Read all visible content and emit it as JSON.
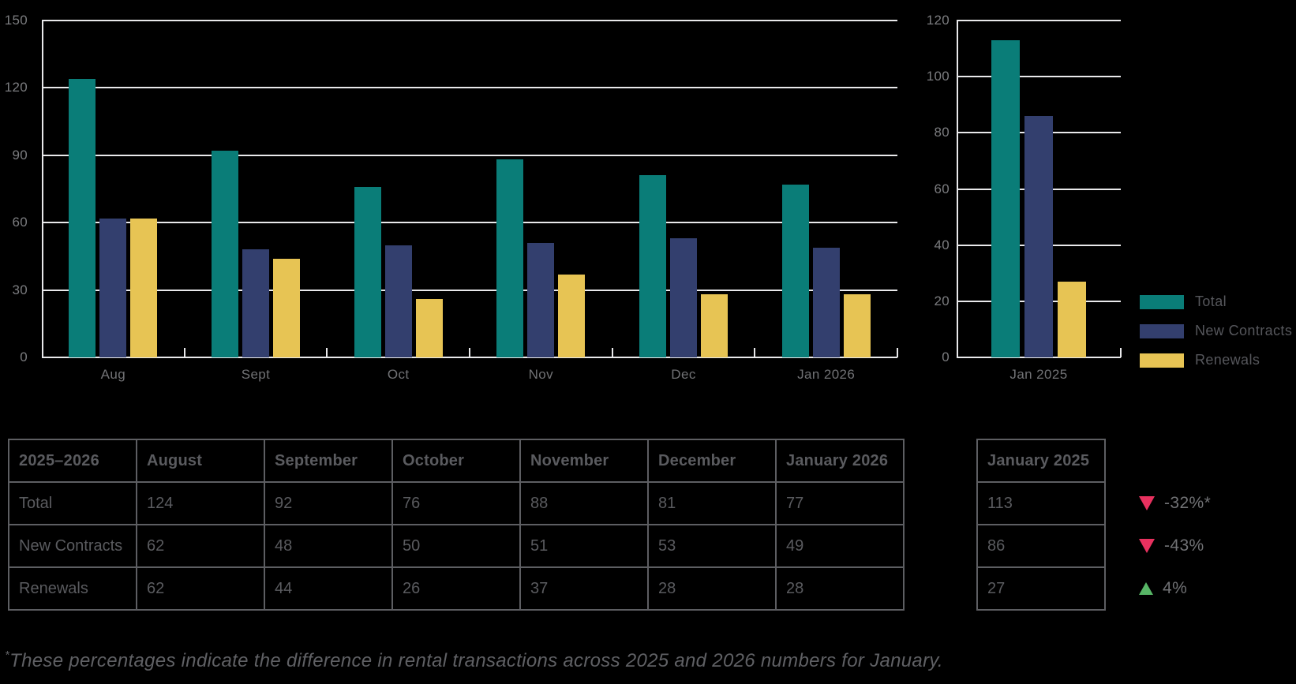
{
  "colors": {
    "teal": "#0a7d78",
    "navy": "#333f6e",
    "yellow": "#e7c454",
    "pink": "#e8315f",
    "green": "#57b566",
    "grid": "#e9e9eb",
    "tick_text": "#7b7c7f",
    "table_text": "#5a5b5f",
    "border": "#5d5e62",
    "background": "#000000"
  },
  "chart_data": [
    {
      "type": "bar",
      "title": "",
      "categories": [
        "Aug",
        "Sept",
        "Oct",
        "Nov",
        "Dec",
        "Jan 2026"
      ],
      "series": [
        {
          "name": "Total",
          "color_key": "teal",
          "values": [
            124,
            92,
            76,
            88,
            81,
            77
          ]
        },
        {
          "name": "New Contracts",
          "color_key": "navy",
          "values": [
            62,
            48,
            50,
            51,
            53,
            49
          ]
        },
        {
          "name": "Renewals",
          "color_key": "yellow",
          "values": [
            62,
            44,
            26,
            37,
            28,
            28
          ]
        }
      ],
      "xlabel": "",
      "ylabel": "",
      "ylim": [
        0,
        150
      ],
      "ytick_step": 30,
      "grid": true,
      "legend_position": "right"
    },
    {
      "type": "bar",
      "title": "",
      "categories": [
        "Jan 2025"
      ],
      "series": [
        {
          "name": "Total",
          "color_key": "teal",
          "values": [
            113
          ]
        },
        {
          "name": "New Contracts",
          "color_key": "navy",
          "values": [
            86
          ]
        },
        {
          "name": "Renewals",
          "color_key": "yellow",
          "values": [
            27
          ]
        }
      ],
      "xlabel": "",
      "ylabel": "",
      "ylim": [
        0,
        120
      ],
      "ytick_step": 20,
      "grid": true,
      "legend_position": "right"
    }
  ],
  "legend": {
    "items": [
      {
        "label": "Total",
        "color_key": "teal"
      },
      {
        "label": "New Contracts",
        "color_key": "navy"
      },
      {
        "label": "Renewals",
        "color_key": "yellow"
      }
    ]
  },
  "table": {
    "header": [
      "2025–2026",
      "August",
      "September",
      "October",
      "November",
      "December",
      "January 2026"
    ],
    "rows": [
      {
        "label": "Total",
        "values": [
          "124",
          "92",
          "76",
          "88",
          "81",
          "77"
        ]
      },
      {
        "label": "New Contracts",
        "values": [
          "62",
          "48",
          "50",
          "51",
          "53",
          "49"
        ]
      },
      {
        "label": "Renewals",
        "values": [
          "62",
          "44",
          "26",
          "37",
          "28",
          "28"
        ]
      }
    ]
  },
  "table_jan_2025": {
    "header": "January 2025",
    "values": [
      "113",
      "86",
      "27"
    ]
  },
  "deltas": [
    {
      "direction": "down",
      "color_key": "pink",
      "label": "-32%*"
    },
    {
      "direction": "down",
      "color_key": "pink",
      "label": "-43%"
    },
    {
      "direction": "up",
      "color_key": "green",
      "label": "4%"
    }
  ],
  "footnote": {
    "superscript": "*",
    "text": "These percentages indicate the difference in rental transactions across 2025 and 2026 numbers for January."
  }
}
